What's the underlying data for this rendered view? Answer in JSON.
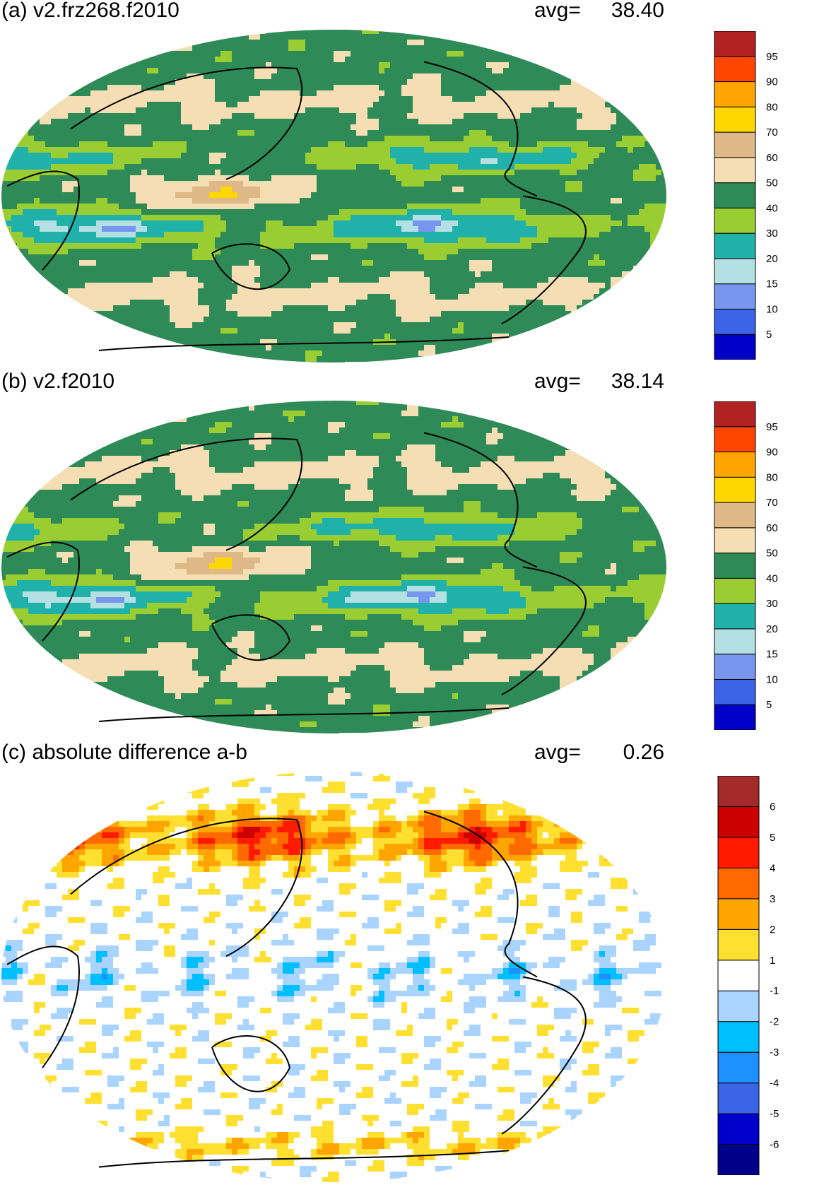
{
  "chart_data": [
    {
      "type": "heatmap",
      "panel_label": "(a)",
      "title": "v2.frz268.f2010",
      "title_full": "(a) v2.frz268.f2010",
      "avg_label": "avg=",
      "avg_value": "38.40",
      "projection": "Robinson, Pacific-centered",
      "colorbar": {
        "levels": [
          "5",
          "10",
          "15",
          "20",
          "30",
          "40",
          "50",
          "60",
          "70",
          "80",
          "90",
          "95"
        ],
        "colors": [
          "#0000c8",
          "#3c64e6",
          "#7896ee",
          "#b4e0e4",
          "#20b2aa",
          "#9acd32",
          "#2e8b57",
          "#f5deb3",
          "#deb887",
          "#ffd700",
          "#ffa500",
          "#ff4500",
          "#b22222"
        ]
      }
    },
    {
      "type": "heatmap",
      "panel_label": "(b)",
      "title": "v2.f2010",
      "title_full": "(b) v2.f2010",
      "avg_label": "avg=",
      "avg_value": "38.14",
      "projection": "Robinson, Pacific-centered",
      "colorbar": {
        "levels": [
          "5",
          "10",
          "15",
          "20",
          "30",
          "40",
          "50",
          "60",
          "70",
          "80",
          "90",
          "95"
        ],
        "colors": [
          "#0000c8",
          "#3c64e6",
          "#7896ee",
          "#b4e0e4",
          "#20b2aa",
          "#9acd32",
          "#2e8b57",
          "#f5deb3",
          "#deb887",
          "#ffd700",
          "#ffa500",
          "#ff4500",
          "#b22222"
        ]
      }
    },
    {
      "type": "heatmap",
      "panel_label": "(c)",
      "title": "absolute difference a-b",
      "title_full": "(c) absolute difference a-b",
      "avg_label": "avg=",
      "avg_value": "0.26",
      "projection": "Robinson, Pacific-centered",
      "colorbar": {
        "levels": [
          "-6",
          "-5",
          "-4",
          "-3",
          "-2",
          "-1",
          "1",
          "2",
          "3",
          "4",
          "5",
          "6"
        ],
        "colors": [
          "#00008b",
          "#0000cd",
          "#3c64e6",
          "#1e90ff",
          "#00bfff",
          "#a8d4ff",
          "#ffffff",
          "#ffe030",
          "#ffa500",
          "#ff6a00",
          "#ff1a00",
          "#cd0000",
          "#a52a2a"
        ]
      }
    }
  ]
}
